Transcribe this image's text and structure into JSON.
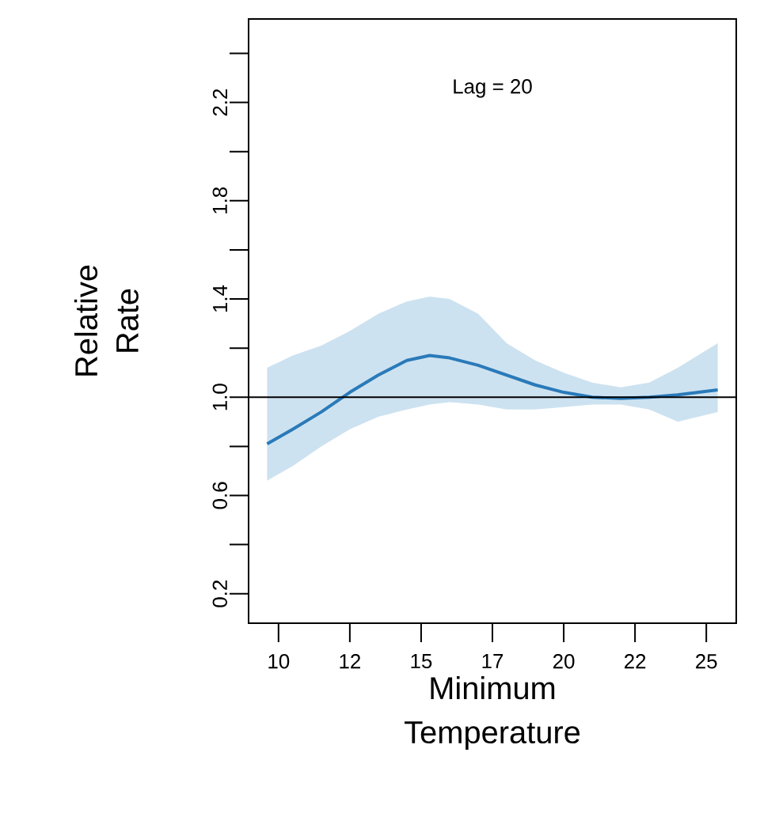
{
  "chart_data": {
    "type": "line",
    "xlabel": "Minimum Temperature",
    "ylabel": "Relative Rate",
    "annotations": [
      "Lag = 20"
    ],
    "x": [
      9.6,
      10.5,
      11.5,
      12.5,
      13.5,
      14.5,
      15.3,
      16,
      17,
      18,
      19,
      20,
      21,
      22,
      23,
      24,
      25.4
    ],
    "series": [
      {
        "color": "#2a7ab9",
        "values": [
          0.81,
          0.87,
          0.94,
          1.02,
          1.09,
          1.15,
          1.17,
          1.16,
          1.13,
          1.09,
          1.05,
          1.02,
          1.0,
          0.995,
          1.0,
          1.01,
          1.03
        ],
        "upper": [
          1.12,
          1.17,
          1.21,
          1.27,
          1.34,
          1.39,
          1.41,
          1.4,
          1.34,
          1.22,
          1.15,
          1.1,
          1.06,
          1.04,
          1.06,
          1.12,
          1.22
        ],
        "lower": [
          0.66,
          0.72,
          0.8,
          0.87,
          0.92,
          0.95,
          0.97,
          0.98,
          0.97,
          0.95,
          0.95,
          0.96,
          0.97,
          0.97,
          0.95,
          0.9,
          0.94
        ]
      }
    ],
    "ref_lines": [
      {
        "axis": "y",
        "value": 1.0,
        "color": "#000000"
      }
    ],
    "xlim": [
      8.95,
      26.05
    ],
    "ylim": [
      0.08,
      2.54
    ],
    "xticks": [
      10,
      {
        "value": 12.5,
        "label": "12"
      },
      15,
      {
        "value": 17.5,
        "label": "17"
      },
      20,
      {
        "value": 22.5,
        "label": "22"
      },
      25
    ],
    "yticks": [
      {
        "value": 0.2,
        "label": "0.2"
      },
      {
        "value": 0.4,
        "label": null
      },
      {
        "value": 0.6,
        "label": "0.6"
      },
      {
        "value": 0.8,
        "label": null
      },
      {
        "value": 1.0,
        "label": "1.0"
      },
      {
        "value": 1.2,
        "label": null
      },
      {
        "value": 1.4,
        "label": "1.4"
      },
      {
        "value": 1.6,
        "label": null
      },
      {
        "value": 1.8,
        "label": "1.8"
      },
      {
        "value": 2.0,
        "label": null
      },
      {
        "value": 2.2,
        "label": "2.2"
      },
      {
        "value": 2.4,
        "label": null
      }
    ],
    "grid": false,
    "legend": false,
    "marker": "none",
    "line_style": "solid"
  }
}
